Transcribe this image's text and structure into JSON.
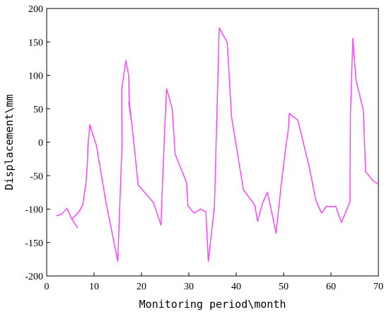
{
  "chart_data": {
    "type": "line",
    "title": "",
    "xlabel": "Monitoring period\\month",
    "ylabel": "Displacement\\mm",
    "xlim": [
      0,
      70
    ],
    "ylim": [
      -200,
      200
    ],
    "xticks": [
      0,
      10,
      20,
      30,
      40,
      50,
      60,
      70
    ],
    "yticks": [
      -200,
      -150,
      -100,
      -50,
      0,
      50,
      100,
      150,
      200
    ],
    "grid": false,
    "legend": "none",
    "series": [
      {
        "color": "#ff44ff",
        "points": [
          [
            2,
            -110
          ],
          [
            3,
            -108
          ],
          [
            4.3,
            -99
          ],
          [
            5.3,
            -115
          ],
          [
            6.5,
            -128
          ],
          [
            5.3,
            -115
          ],
          [
            6.8,
            -104
          ],
          [
            7.6,
            -94
          ],
          [
            8.3,
            -60
          ],
          [
            8.6,
            -30
          ],
          [
            8.7,
            -5
          ],
          [
            9.1,
            26
          ],
          [
            10.5,
            -5
          ],
          [
            12.5,
            -90
          ],
          [
            15,
            -178
          ],
          [
            15.5,
            -80
          ],
          [
            15.9,
            -3
          ],
          [
            15.8,
            78
          ],
          [
            16.7,
            122
          ],
          [
            17.3,
            100
          ],
          [
            17.4,
            62
          ],
          [
            17.9,
            31
          ],
          [
            17.3,
            60
          ],
          [
            18,
            25
          ],
          [
            19.3,
            -64
          ],
          [
            22.5,
            -90
          ],
          [
            24.1,
            -124
          ],
          [
            24.9,
            20
          ],
          [
            25.3,
            80
          ],
          [
            26.5,
            50
          ],
          [
            27.1,
            -18
          ],
          [
            29.5,
            -60
          ],
          [
            29.8,
            -95
          ],
          [
            31.1,
            -106
          ],
          [
            32.5,
            -100
          ],
          [
            33.6,
            -104
          ],
          [
            34.1,
            -178
          ],
          [
            35.4,
            -95
          ],
          [
            36.4,
            171
          ],
          [
            38.1,
            149
          ],
          [
            39,
            38
          ],
          [
            41.5,
            -71
          ],
          [
            43.9,
            -94
          ],
          [
            44.5,
            -118
          ],
          [
            45.6,
            -90
          ],
          [
            46.6,
            -75
          ],
          [
            48.4,
            -136
          ],
          [
            49.5,
            -62
          ],
          [
            50.4,
            -10
          ],
          [
            51,
            20
          ],
          [
            51.2,
            43
          ],
          [
            53,
            33
          ],
          [
            55.5,
            -40
          ],
          [
            56.8,
            -87
          ],
          [
            58,
            -106
          ],
          [
            59,
            -96
          ],
          [
            61,
            -96
          ],
          [
            62.2,
            -120
          ],
          [
            64,
            -89
          ],
          [
            64.1,
            42
          ],
          [
            64.6,
            155
          ],
          [
            65.3,
            92
          ],
          [
            66.8,
            48
          ],
          [
            67.3,
            -44
          ],
          [
            68.9,
            -58
          ],
          [
            70,
            -63
          ]
        ]
      }
    ]
  }
}
